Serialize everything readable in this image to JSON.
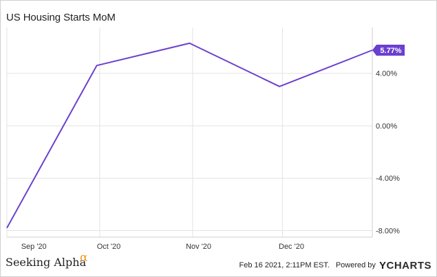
{
  "chart_data": {
    "type": "line",
    "title": "US Housing Starts MoM",
    "x": [
      "2020-08-31",
      "2020-09-30",
      "2020-10-31",
      "2020-11-30",
      "2020-12-31"
    ],
    "x_tick_labels": [
      "Sep '20",
      "Oct '20",
      "Nov '20",
      "Dec '20"
    ],
    "series": [
      {
        "values": [
          -7.8,
          4.6,
          6.3,
          3.0,
          5.77
        ],
        "color": "#6a3fcf"
      }
    ],
    "y_ticks": [
      -8,
      -4,
      0,
      4
    ],
    "y_tick_labels": [
      "-8.00%",
      "-4.00%",
      "0.00%",
      "4.00%"
    ],
    "ylim": [
      -8.5,
      7.5
    ],
    "last_value_label": "5.77%",
    "grid": true,
    "y_axis_side": "right"
  },
  "footer": {
    "brand": "Seeking Alpha",
    "brand_symbol": "α",
    "timestamp": "Feb 16 2021, 2:11PM EST.",
    "powered_by": "Powered by",
    "ycharts_y": "Y",
    "ycharts_rest": "CHARTS"
  },
  "colors": {
    "line": "#6a3fcf",
    "badge": "#6a3fcf",
    "grid": "#e3e3e3",
    "alpha": "#f29a1f"
  }
}
